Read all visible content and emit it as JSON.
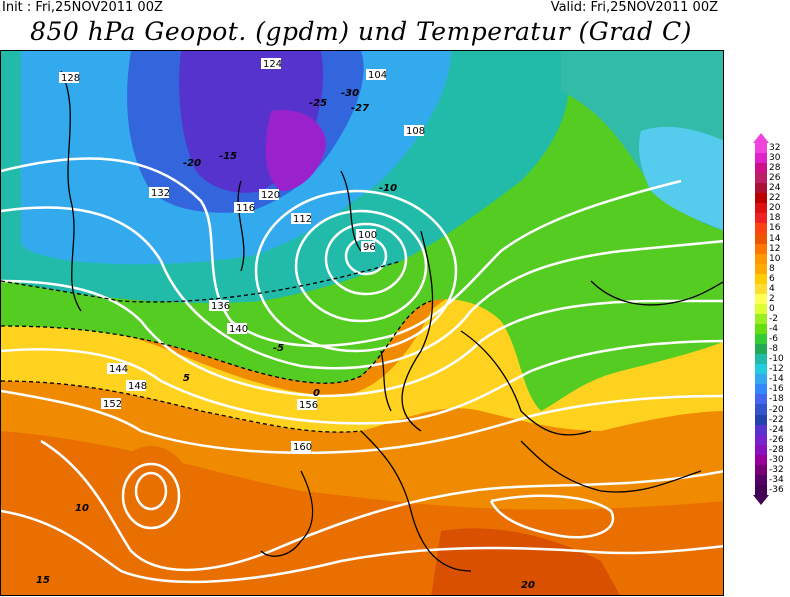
{
  "header": {
    "init": "Init : Fri,25NOV2011 00Z",
    "valid": "Valid: Fri,25NOV2011 00Z",
    "title": "850 hPa Geopot. (gpdm) und Temperatur (Grad C)"
  },
  "legend": {
    "levels": [
      "32",
      "30",
      "28",
      "26",
      "24",
      "22",
      "20",
      "18",
      "16",
      "14",
      "12",
      "10",
      "8",
      "6",
      "4",
      "2",
      "0",
      "-2",
      "-4",
      "-6",
      "-8",
      "-10",
      "-12",
      "-14",
      "-16",
      "-18",
      "-20",
      "-22",
      "-24",
      "-26",
      "-28",
      "-30",
      "-32",
      "-34",
      "-36"
    ],
    "colors": [
      "#ee44dd",
      "#dd22cc",
      "#cc1188",
      "#bb2266",
      "#aa1133",
      "#bb0000",
      "#dd1111",
      "#ee2222",
      "#ff4411",
      "#ee5500",
      "#ff7700",
      "#ff9900",
      "#ffaa00",
      "#ffcc00",
      "#ffdd33",
      "#ffff55",
      "#ddff33",
      "#99ee22",
      "#66dd11",
      "#33cc33",
      "#22aa55",
      "#22bbaa",
      "#22ccdd",
      "#33aaee",
      "#3388ff",
      "#4466ee",
      "#3355cc",
      "#2244aa",
      "#5533cc",
      "#7722cc",
      "#8811bb",
      "#990099",
      "#770077",
      "#550066",
      "#440055"
    ]
  },
  "geopotential_labels": [
    {
      "text": "128"
    },
    {
      "text": "124"
    },
    {
      "text": "120"
    },
    {
      "text": "116"
    },
    {
      "text": "112"
    },
    {
      "text": "108"
    },
    {
      "text": "104"
    },
    {
      "text": "100"
    },
    {
      "text": "96"
    },
    {
      "text": "132"
    },
    {
      "text": "136"
    },
    {
      "text": "140"
    },
    {
      "text": "144"
    },
    {
      "text": "148"
    },
    {
      "text": "152"
    },
    {
      "text": "156"
    },
    {
      "text": "160"
    }
  ],
  "temperature_labels": [
    {
      "text": "-30"
    },
    {
      "text": "-27"
    },
    {
      "text": "-25"
    },
    {
      "text": "-20"
    },
    {
      "text": "-15"
    },
    {
      "text": "-10"
    },
    {
      "text": "-5"
    },
    {
      "text": "0"
    },
    {
      "text": "5"
    },
    {
      "text": "10"
    },
    {
      "text": "15"
    },
    {
      "text": "20"
    }
  ]
}
